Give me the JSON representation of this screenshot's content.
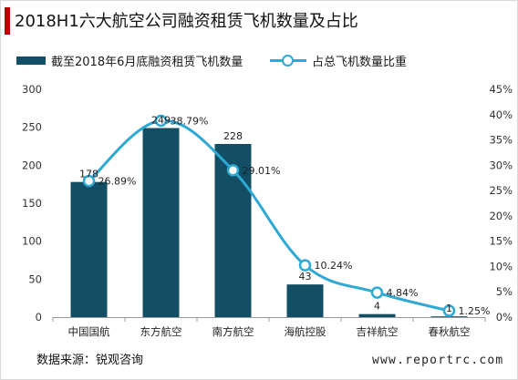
{
  "title": "2018H1六大航空公司融资租赁飞机数量及占比",
  "source": "数据来源：锐观咨询",
  "watermark": "www.reportrc.com",
  "colors": {
    "bar": "#124f65",
    "line": "#2ea9d4",
    "accent": "#c00000"
  },
  "chart_data": {
    "type": "bar",
    "categories": [
      "中国国航",
      "东方航空",
      "南方航空",
      "海航控股",
      "吉祥航空",
      "春秋航空"
    ],
    "series": [
      {
        "name": "截至2018年6月底融资租赁飞机数量",
        "type": "bar",
        "axis": "left",
        "values": [
          178,
          249,
          228,
          43,
          4,
          1
        ],
        "labels": [
          "178",
          "249",
          "228",
          "43",
          "4",
          "1"
        ]
      },
      {
        "name": "占总飞机数量比重",
        "type": "line",
        "axis": "right",
        "values": [
          26.89,
          38.79,
          29.01,
          10.24,
          4.84,
          1.25
        ],
        "labels": [
          "26.89%",
          "38.79%",
          "29.01%",
          "10.24%",
          "4.84%",
          "1.25%"
        ]
      }
    ],
    "yleft": {
      "range": [
        0,
        300
      ],
      "ticks": [
        0,
        50,
        100,
        150,
        200,
        250,
        300
      ],
      "tick_labels": [
        "0",
        "50",
        "100",
        "150",
        "200",
        "250",
        "300"
      ]
    },
    "yright": {
      "range": [
        0,
        45
      ],
      "ticks": [
        0,
        5,
        10,
        15,
        20,
        25,
        30,
        35,
        40,
        45
      ],
      "tick_labels": [
        "0%",
        "5%",
        "10%",
        "15%",
        "20%",
        "25%",
        "30%",
        "35%",
        "40%",
        "45%"
      ]
    },
    "grid": false,
    "legend_position": "top-left"
  }
}
